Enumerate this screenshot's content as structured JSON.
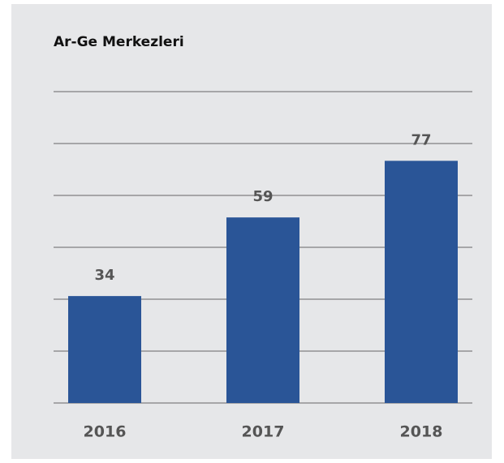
{
  "chart_data": {
    "type": "bar",
    "title": "Ar-Ge Merkezleri",
    "categories": [
      "2016",
      "2017",
      "2018"
    ],
    "values": [
      34,
      59,
      77
    ],
    "color": "#2a5597",
    "ylim": [
      0,
      99
    ],
    "yticks": [
      0,
      16.5,
      33,
      49.5,
      66,
      82.5,
      99
    ],
    "grid": true
  }
}
